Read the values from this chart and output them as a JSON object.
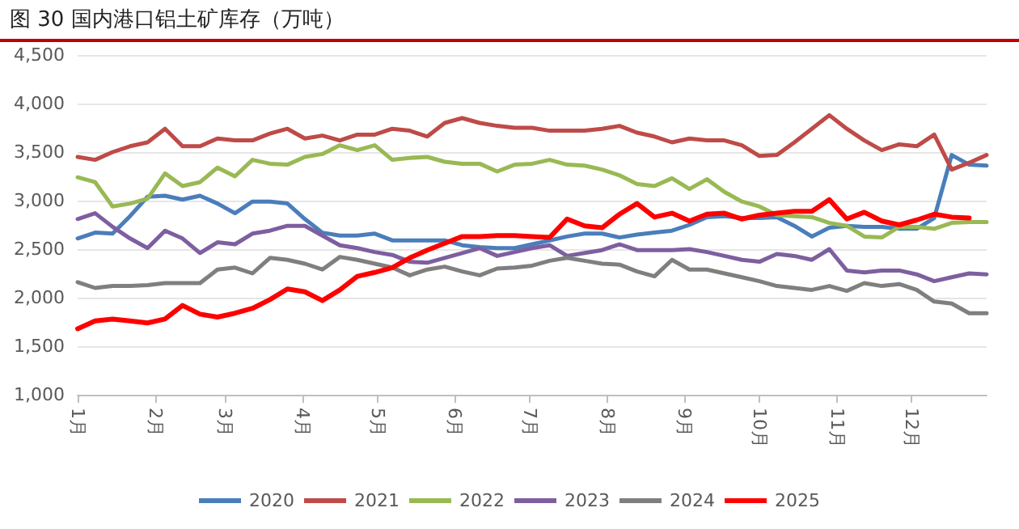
{
  "chart_data": {
    "type": "line",
    "title": "图 30 国内港口铝土矿库存（万吨）",
    "x": [
      "--01-01",
      "--01-08",
      "--01-15",
      "--01-22",
      "--01-29",
      "--02-05",
      "--02-12",
      "--02-19",
      "--02-26",
      "--03-05",
      "--03-12",
      "--03-19",
      "--03-26",
      "--04-02",
      "--04-09",
      "--04-16",
      "--04-23",
      "--04-30",
      "--05-07",
      "--05-14",
      "--05-21",
      "--05-28",
      "--06-04",
      "--06-11",
      "--06-18",
      "--06-25",
      "--07-02",
      "--07-09",
      "--07-16",
      "--07-23",
      "--07-30",
      "--08-06",
      "--08-13",
      "--08-20",
      "--08-27",
      "--09-03",
      "--09-10",
      "--09-17",
      "--09-24",
      "--10-01",
      "--10-08",
      "--10-15",
      "--10-22",
      "--10-29",
      "--11-05",
      "--11-12",
      "--11-19",
      "--11-26",
      "--12-03",
      "--12-10",
      "--12-17",
      "--12-24",
      "--12-31"
    ],
    "series": [
      {
        "name": "2020",
        "color": "#4a7ebb",
        "values": [
          2610,
          2670,
          2660,
          2840,
          3040,
          3050,
          3010,
          3050,
          2970,
          2870,
          2990,
          2990,
          2970,
          2810,
          2670,
          2640,
          2640,
          2660,
          2590,
          2590,
          2590,
          2590,
          2540,
          2520,
          2510,
          2510,
          2550,
          2590,
          2630,
          2660,
          2660,
          2620,
          2650,
          2670,
          2690,
          2750,
          2830,
          2840,
          2820,
          2820,
          2830,
          2740,
          2630,
          2720,
          2740,
          2730,
          2730,
          2710,
          2710,
          2820,
          3470,
          3370,
          3360
        ]
      },
      {
        "name": "2021",
        "color": "#be4b48",
        "values": [
          3450,
          3420,
          3500,
          3560,
          3600,
          3740,
          3560,
          3560,
          3640,
          3620,
          3620,
          3690,
          3740,
          3640,
          3670,
          3620,
          3680,
          3680,
          3740,
          3720,
          3660,
          3800,
          3850,
          3800,
          3770,
          3750,
          3750,
          3720,
          3720,
          3720,
          3740,
          3770,
          3700,
          3660,
          3600,
          3640,
          3620,
          3620,
          3570,
          3460,
          3470,
          3600,
          3740,
          3880,
          3740,
          3620,
          3520,
          3580,
          3560,
          3680,
          3320,
          3390,
          3470
        ]
      },
      {
        "name": "2022",
        "color": "#98b954",
        "values": [
          3240,
          3190,
          2940,
          2970,
          3020,
          3280,
          3150,
          3190,
          3340,
          3250,
          3420,
          3380,
          3370,
          3450,
          3480,
          3570,
          3520,
          3570,
          3420,
          3440,
          3450,
          3400,
          3380,
          3380,
          3300,
          3370,
          3380,
          3420,
          3370,
          3360,
          3320,
          3260,
          3170,
          3150,
          3230,
          3120,
          3220,
          3090,
          2990,
          2940,
          2850,
          2840,
          2830,
          2770,
          2740,
          2630,
          2620,
          2730,
          2730,
          2710,
          2770,
          2780,
          2780
        ]
      },
      {
        "name": "2023",
        "color": "#7d5fa0",
        "values": [
          2810,
          2870,
          2730,
          2610,
          2510,
          2690,
          2610,
          2460,
          2570,
          2550,
          2660,
          2690,
          2740,
          2740,
          2640,
          2540,
          2510,
          2470,
          2440,
          2370,
          2360,
          2410,
          2460,
          2510,
          2430,
          2470,
          2510,
          2540,
          2430,
          2460,
          2490,
          2550,
          2490,
          2490,
          2490,
          2500,
          2470,
          2430,
          2390,
          2370,
          2450,
          2430,
          2390,
          2500,
          2280,
          2260,
          2280,
          2280,
          2240,
          2170,
          2210,
          2250,
          2240
        ]
      },
      {
        "name": "2024",
        "color": "#7f7f7f",
        "values": [
          2160,
          2100,
          2120,
          2120,
          2130,
          2150,
          2150,
          2150,
          2290,
          2310,
          2250,
          2410,
          2390,
          2350,
          2290,
          2420,
          2390,
          2350,
          2310,
          2230,
          2290,
          2320,
          2270,
          2230,
          2300,
          2310,
          2330,
          2380,
          2410,
          2380,
          2350,
          2340,
          2270,
          2220,
          2390,
          2290,
          2290,
          2250,
          2210,
          2170,
          2120,
          2100,
          2080,
          2120,
          2070,
          2150,
          2120,
          2140,
          2080,
          1960,
          1940,
          1840,
          1840
        ]
      },
      {
        "name": "2025",
        "color": "#ff0000",
        "values": [
          1680,
          1760,
          1780,
          1760,
          1740,
          1780,
          1920,
          1830,
          1800,
          1840,
          1890,
          1980,
          2090,
          2060,
          1970,
          2080,
          2220,
          2260,
          2310,
          2410,
          2490,
          2560,
          2630,
          2630,
          2640,
          2640,
          2630,
          2620,
          2810,
          2740,
          2720,
          2860,
          2970,
          2830,
          2870,
          2790,
          2860,
          2870,
          2810,
          2850,
          2870,
          2890,
          2890,
          3010,
          2810,
          2880,
          2790,
          2750,
          2800,
          2860,
          2830,
          2820,
          null
        ]
      }
    ],
    "xlim": [
      "--01-01",
      "--12-31"
    ],
    "xticks": [
      {
        "value": "--01-01",
        "label": "1月"
      },
      {
        "value": "--02-01",
        "label": "2月"
      },
      {
        "value": "--03-01",
        "label": "3月"
      },
      {
        "value": "--04-01",
        "label": "4月"
      },
      {
        "value": "--05-01",
        "label": "5月"
      },
      {
        "value": "--06-01",
        "label": "6月"
      },
      {
        "value": "--07-01",
        "label": "7月"
      },
      {
        "value": "--08-01",
        "label": "8月"
      },
      {
        "value": "--09-01",
        "label": "9月"
      },
      {
        "value": "--10-01",
        "label": "10月"
      },
      {
        "value": "--11-01",
        "label": "11月"
      },
      {
        "value": "--12-01",
        "label": "12月"
      }
    ],
    "ylim": [
      1000,
      4500
    ],
    "yticks": [
      {
        "value": 1000,
        "label": "1,000"
      },
      {
        "value": 1500,
        "label": "1,500"
      },
      {
        "value": 2000,
        "label": "2,000"
      },
      {
        "value": 2500,
        "label": "2,500"
      },
      {
        "value": 3000,
        "label": "3,000"
      },
      {
        "value": 3500,
        "label": "3,500"
      },
      {
        "value": 4000,
        "label": "4,000"
      },
      {
        "value": 4500,
        "label": "4,500"
      }
    ],
    "grid": "y",
    "legend": "bottom",
    "marker": "none",
    "line_style": "solid"
  }
}
